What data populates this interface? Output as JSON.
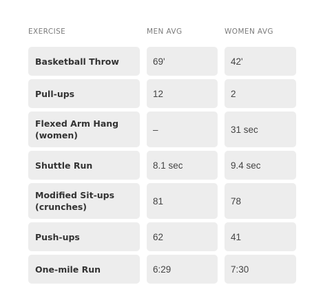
{
  "table": {
    "headers": [
      "EXERCISE",
      "MEN AVG",
      "WOMEN AVG"
    ],
    "rows": [
      {
        "exercise": "Basketball Throw",
        "men": "69'",
        "women": "42'"
      },
      {
        "exercise": "Pull-ups",
        "men": "12",
        "women": "2"
      },
      {
        "exercise": "Flexed Arm Hang (women)",
        "men": "–",
        "women": "31 sec"
      },
      {
        "exercise": "Shuttle Run",
        "men": "8.1 sec",
        "women": "9.4 sec"
      },
      {
        "exercise": "Modified Sit-ups (crunches)",
        "men": "81",
        "women": "78"
      },
      {
        "exercise": "Push-ups",
        "men": "62",
        "women": "41"
      },
      {
        "exercise": "One-mile Run",
        "men": "6:29",
        "women": "7:30"
      }
    ]
  }
}
